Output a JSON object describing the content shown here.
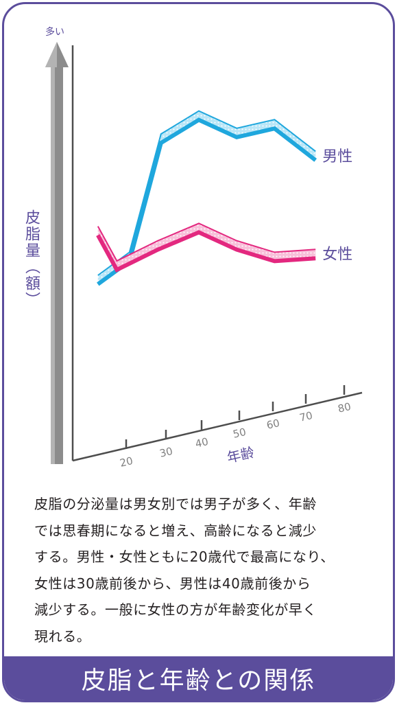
{
  "chart_data": {
    "type": "line",
    "title": "皮脂と年齢との関係",
    "ylabel": "皮脂量（額）",
    "y_axis_top_label": "多い",
    "xlabel": "年齢",
    "x_ticks": [
      "20",
      "30",
      "40",
      "50",
      "60",
      "70",
      "80"
    ],
    "grid": false,
    "legend": "labels at line ends (right)",
    "series": [
      {
        "name": "男性",
        "color": "#1fa7dd",
        "points": [
          [
            8,
            25
          ],
          [
            18,
            33
          ],
          [
            28,
            74
          ],
          [
            40,
            82
          ],
          [
            52,
            76
          ],
          [
            64,
            79
          ],
          [
            77,
            68
          ]
        ]
      },
      {
        "name": "女性",
        "color": "#e3287f",
        "points": [
          [
            8,
            42
          ],
          [
            14,
            30
          ],
          [
            27,
            37
          ],
          [
            40,
            43
          ],
          [
            52,
            37
          ],
          [
            64,
            33
          ],
          [
            77,
            34
          ]
        ]
      }
    ]
  },
  "description": [
    "皮脂の分泌量は男女別では男子が多く、年齢",
    "では思春期になると増え、高齢になると減少",
    "する。男性・女性ともに20歳代で最高になり、",
    "女性は30歳前後から、男性は40歳前後から",
    "減少する。一般に女性の方が年齢変化が早く",
    "現れる。"
  ],
  "colors": {
    "accent": "#5b4d9c",
    "male": "#1fa7dd",
    "female": "#e3287f"
  }
}
